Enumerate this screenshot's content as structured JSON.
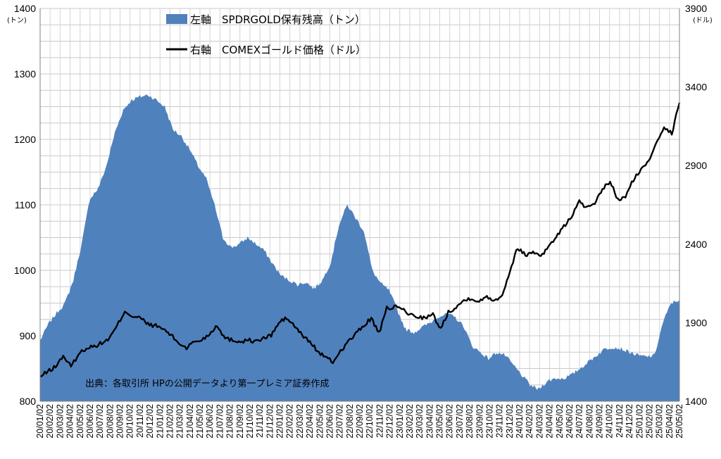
{
  "chart_data": {
    "type": "area+line",
    "legend": [
      {
        "marker": "area",
        "text": "左軸　SPDRGOLD保有残高（トン）",
        "color": "#4f81bd"
      },
      {
        "marker": "line",
        "text": "右軸　COMEXゴールド価格（ドル）",
        "color": "#000000"
      }
    ],
    "left_axis": {
      "unit": "(トン)",
      "min": 800,
      "max": 1400,
      "ticks": [
        800,
        900,
        1000,
        1100,
        1200,
        1300,
        1400
      ]
    },
    "right_axis": {
      "unit": "(ドル)",
      "min": 1400,
      "max": 3900,
      "ticks": [
        1400,
        1900,
        2400,
        2900,
        3400,
        3900
      ]
    },
    "x_tick_labels": [
      "20/01/02",
      "20/02/02",
      "20/03/02",
      "20/04/02",
      "20/05/02",
      "20/06/02",
      "20/07/02",
      "20/08/02",
      "20/09/02",
      "20/10/02",
      "20/11/02",
      "20/12/02",
      "21/01/02",
      "21/02/02",
      "21/03/02",
      "21/04/02",
      "21/05/02",
      "21/06/02",
      "21/07/02",
      "21/08/02",
      "21/09/02",
      "21/10/02",
      "21/11/02",
      "21/12/02",
      "22/01/02",
      "22/02/02",
      "22/03/02",
      "22/04/02",
      "22/05/02",
      "22/06/02",
      "22/07/02",
      "22/08/02",
      "22/09/02",
      "22/10/02",
      "22/11/02",
      "22/12/02",
      "23/01/02",
      "23/02/02",
      "23/03/02",
      "23/04/02",
      "23/05/02",
      "23/06/02",
      "23/07/02",
      "23/08/02",
      "23/09/02",
      "23/10/02",
      "23/11/02",
      "23/12/02",
      "24/01/02",
      "24/02/02",
      "24/03/02",
      "24/04/02",
      "24/05/02",
      "24/06/02",
      "24/07/02",
      "24/08/02",
      "24/09/02",
      "24/10/02",
      "24/11/02",
      "24/12/02",
      "25/01/02",
      "25/02/02",
      "25/03/02",
      "25/04/02",
      "25/05/02"
    ],
    "series": [
      {
        "name": "SPDRGOLD保有残高（トン）",
        "axis": "left",
        "kind": "area",
        "values": [
          893,
          918,
          935,
          950,
          985,
          1040,
          1110,
          1125,
          1160,
          1210,
          1245,
          1260,
          1265,
          1268,
          1260,
          1250,
          1215,
          1205,
          1185,
          1160,
          1140,
          1100,
          1050,
          1035,
          1040,
          1050,
          1040,
          1030,
          1010,
          992,
          985,
          978,
          982,
          972,
          985,
          1012,
          1070,
          1100,
          1080,
          1060,
          1000,
          980,
          970,
          940,
          910,
          905,
          913,
          920,
          930,
          933,
          928,
          915,
          885,
          875,
          865,
          875,
          870,
          855,
          840,
          825,
          818,
          830,
          835,
          835,
          840,
          850,
          860,
          870,
          880,
          883,
          880,
          875,
          870,
          868,
          870,
          920,
          950,
          955
        ]
      },
      {
        "name": "COMEXゴールド価格（ドル）",
        "axis": "right",
        "kind": "line",
        "values": [
          1555,
          1590,
          1620,
          1690,
          1620,
          1700,
          1740,
          1750,
          1770,
          1800,
          1880,
          1975,
          1940,
          1930,
          1890,
          1880,
          1860,
          1820,
          1770,
          1740,
          1780,
          1790,
          1830,
          1885,
          1800,
          1790,
          1780,
          1790,
          1780,
          1800,
          1820,
          1900,
          1930,
          1880,
          1820,
          1780,
          1720,
          1680,
          1650,
          1720,
          1780,
          1830,
          1880,
          1930,
          1830,
          1990,
          2000,
          1990,
          1950,
          1940,
          1930,
          1950,
          1860,
          1970,
          2000,
          2040,
          2060,
          2030,
          2070,
          2040,
          2080,
          2230,
          2380,
          2330,
          2350,
          2330,
          2380,
          2450,
          2510,
          2580,
          2670,
          2630,
          2650,
          2750,
          2800,
          2680,
          2700,
          2810,
          2870,
          2930,
          3050,
          3150,
          3100,
          3300
        ]
      }
    ],
    "annotation": "出典：各取引所 HPの公開データより第一プレミア証券作成"
  }
}
